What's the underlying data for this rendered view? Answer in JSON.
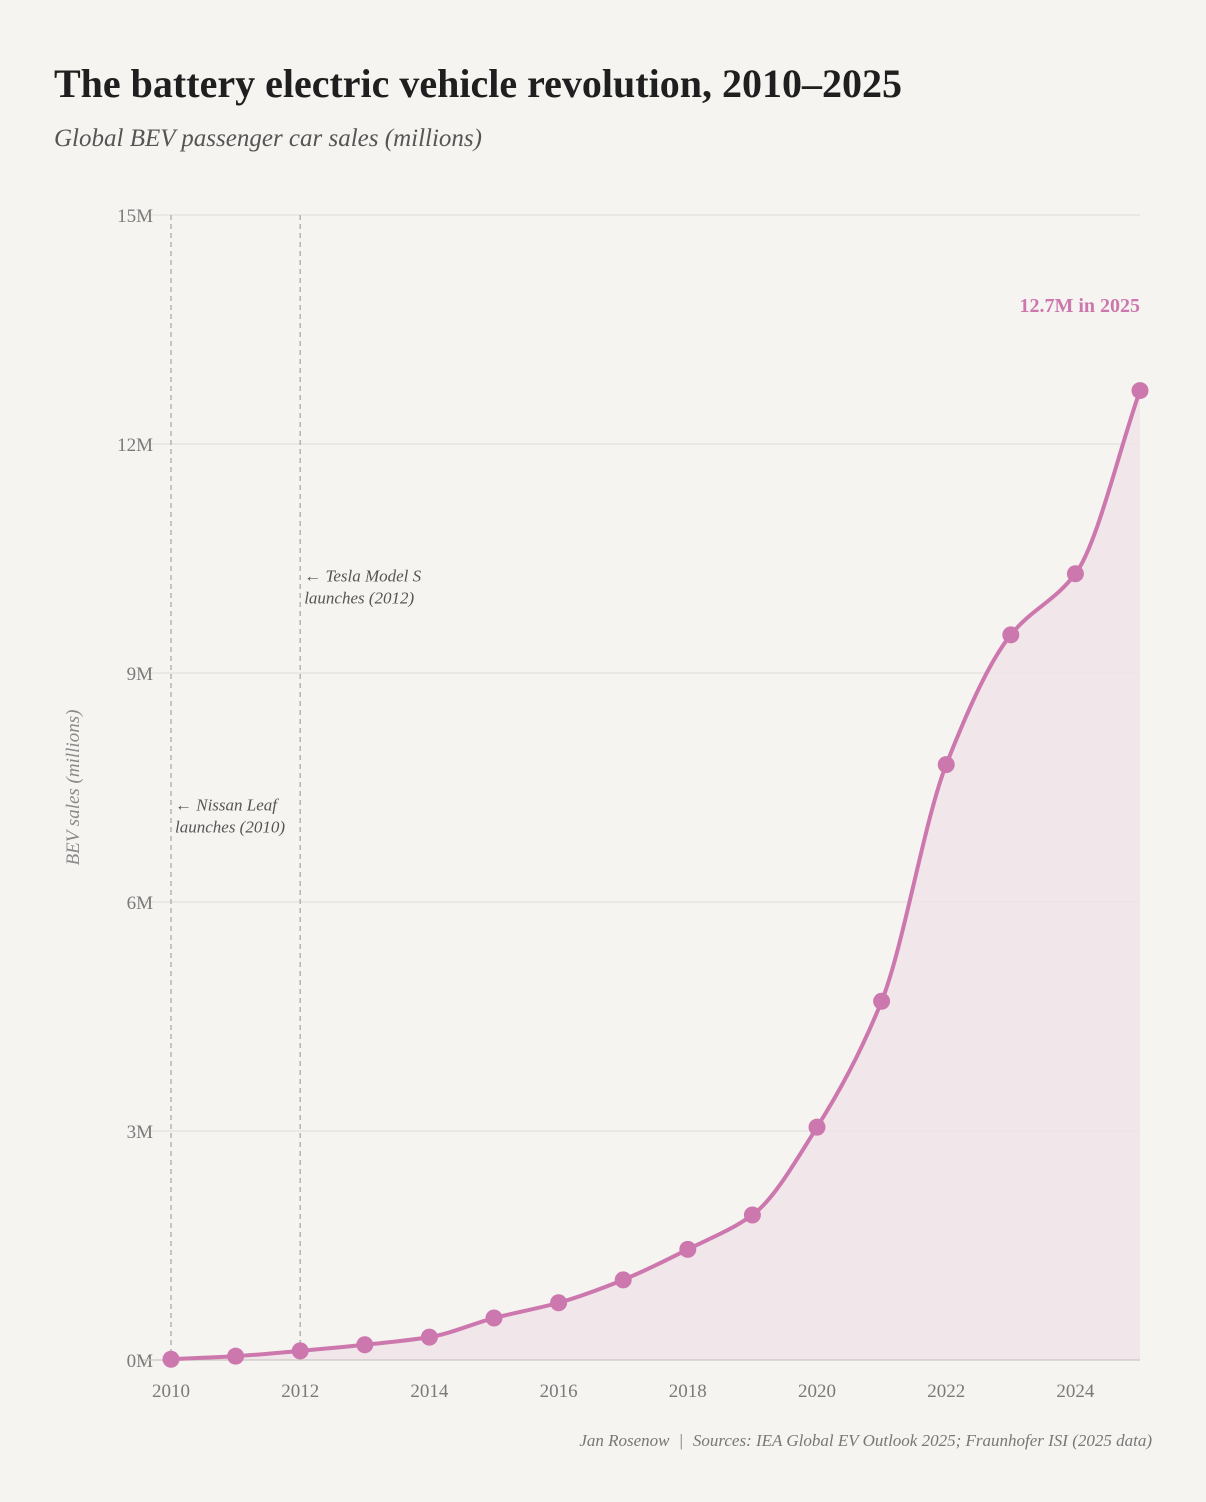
{
  "header": {
    "title": "The battery electric vehicle revolution, 2010–2025",
    "subtitle": "Global BEV passenger car sales (millions)"
  },
  "footer": {
    "author": "Jan Rosenow",
    "separator": "|",
    "sources": "Sources: IEA Global EV Outlook 2025; Fraunhofer ISI (2025 data)"
  },
  "colors": {
    "line": "#cc77ad",
    "area": "#f0e3e7",
    "grid": "#e4e1dc",
    "annotation_line": "#b3b3b3"
  },
  "chart_data": {
    "type": "area",
    "title": "The battery electric vehicle revolution, 2010–2025",
    "subtitle": "Global BEV passenger car sales (millions)",
    "ylabel": "BEV sales (millions)",
    "xlabel": "",
    "x": [
      2010,
      2011,
      2012,
      2013,
      2014,
      2015,
      2016,
      2017,
      2018,
      2019,
      2020,
      2021,
      2022,
      2023,
      2024,
      2025
    ],
    "series": [
      {
        "values": [
          0.01,
          0.05,
          0.12,
          0.2,
          0.3,
          0.55,
          0.75,
          1.05,
          1.45,
          1.9,
          3.05,
          4.7,
          7.8,
          9.5,
          10.3,
          12.7
        ]
      }
    ],
    "xlim": [
      2010,
      2025
    ],
    "ylim": [
      0,
      15
    ],
    "x_ticks": [
      2010,
      2012,
      2014,
      2016,
      2018,
      2020,
      2022,
      2024
    ],
    "x_tick_labels": [
      "2010",
      "2012",
      "2014",
      "2016",
      "2018",
      "2020",
      "2022",
      "2024"
    ],
    "y_ticks": [
      0,
      3,
      6,
      9,
      12,
      15
    ],
    "y_tick_labels": [
      "0M",
      "3M",
      "6M",
      "9M",
      "12M",
      "15M"
    ],
    "grid": "horizontal",
    "end_label": "12.7M in 2025",
    "annotations": [
      {
        "x": 2010,
        "y": 7.2,
        "lines": [
          "← Nissan Leaf",
          "launches (2010)"
        ]
      },
      {
        "x": 2012,
        "y": 10.2,
        "lines": [
          "← Tesla Model S",
          "launches (2012)"
        ]
      }
    ]
  }
}
